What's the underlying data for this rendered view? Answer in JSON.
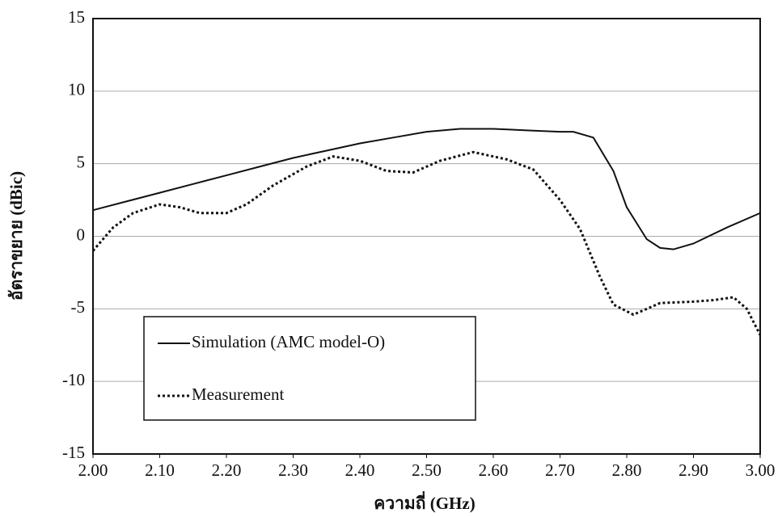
{
  "chart_data": {
    "type": "line",
    "xlabel": "ความถี่ (GHz)",
    "ylabel": "อัตราขยาย (dBic)",
    "xlim": [
      2,
      3
    ],
    "xticks": [
      {
        "value": 2,
        "label": "2.00"
      },
      {
        "value": 2.1,
        "label": "2.10"
      },
      {
        "value": 2.2,
        "label": "2.20"
      },
      {
        "value": 2.3,
        "label": "2.30"
      },
      {
        "value": 2.4,
        "label": "2.40"
      },
      {
        "value": 2.5,
        "label": "2.50"
      },
      {
        "value": 2.6,
        "label": "2.60"
      },
      {
        "value": 2.7,
        "label": "2.70"
      },
      {
        "value": 2.8,
        "label": "2.80"
      },
      {
        "value": 2.9,
        "label": "2.90"
      },
      {
        "value": 3,
        "label": "3.00"
      }
    ],
    "ylim": [
      -15,
      15
    ],
    "yticks": [
      -15,
      -10,
      -5,
      0,
      5,
      10,
      15
    ],
    "grid": true,
    "series": [
      {
        "name": "Simulation (AMC model-O)",
        "color": "#111111",
        "dash": "solid",
        "x": [
          2.0,
          2.05,
          2.1,
          2.15,
          2.2,
          2.25,
          2.3,
          2.35,
          2.4,
          2.45,
          2.5,
          2.55,
          2.6,
          2.65,
          2.7,
          2.72,
          2.75,
          2.78,
          2.8,
          2.83,
          2.85,
          2.87,
          2.9,
          2.95,
          3.0
        ],
        "values": [
          1.8,
          2.4,
          3.0,
          3.6,
          4.2,
          4.8,
          5.4,
          5.9,
          6.4,
          6.8,
          7.2,
          7.4,
          7.4,
          7.3,
          7.2,
          7.2,
          6.8,
          4.5,
          2.0,
          -0.2,
          -0.8,
          -0.9,
          -0.5,
          0.6,
          1.6
        ]
      },
      {
        "name": "Measurement",
        "color": "#111111",
        "dash": "dotted",
        "x": [
          2.0,
          2.03,
          2.06,
          2.1,
          2.13,
          2.16,
          2.2,
          2.23,
          2.27,
          2.32,
          2.36,
          2.4,
          2.44,
          2.48,
          2.52,
          2.57,
          2.62,
          2.66,
          2.7,
          2.73,
          2.76,
          2.78,
          2.81,
          2.85,
          2.9,
          2.93,
          2.96,
          2.98,
          3.0
        ],
        "values": [
          -1.0,
          0.6,
          1.6,
          2.2,
          2.0,
          1.6,
          1.6,
          2.2,
          3.5,
          4.8,
          5.5,
          5.2,
          4.5,
          4.4,
          5.2,
          5.8,
          5.3,
          4.6,
          2.5,
          0.5,
          -2.8,
          -4.7,
          -5.4,
          -4.6,
          -4.5,
          -4.4,
          -4.2,
          -5.0,
          -6.8
        ]
      }
    ]
  }
}
